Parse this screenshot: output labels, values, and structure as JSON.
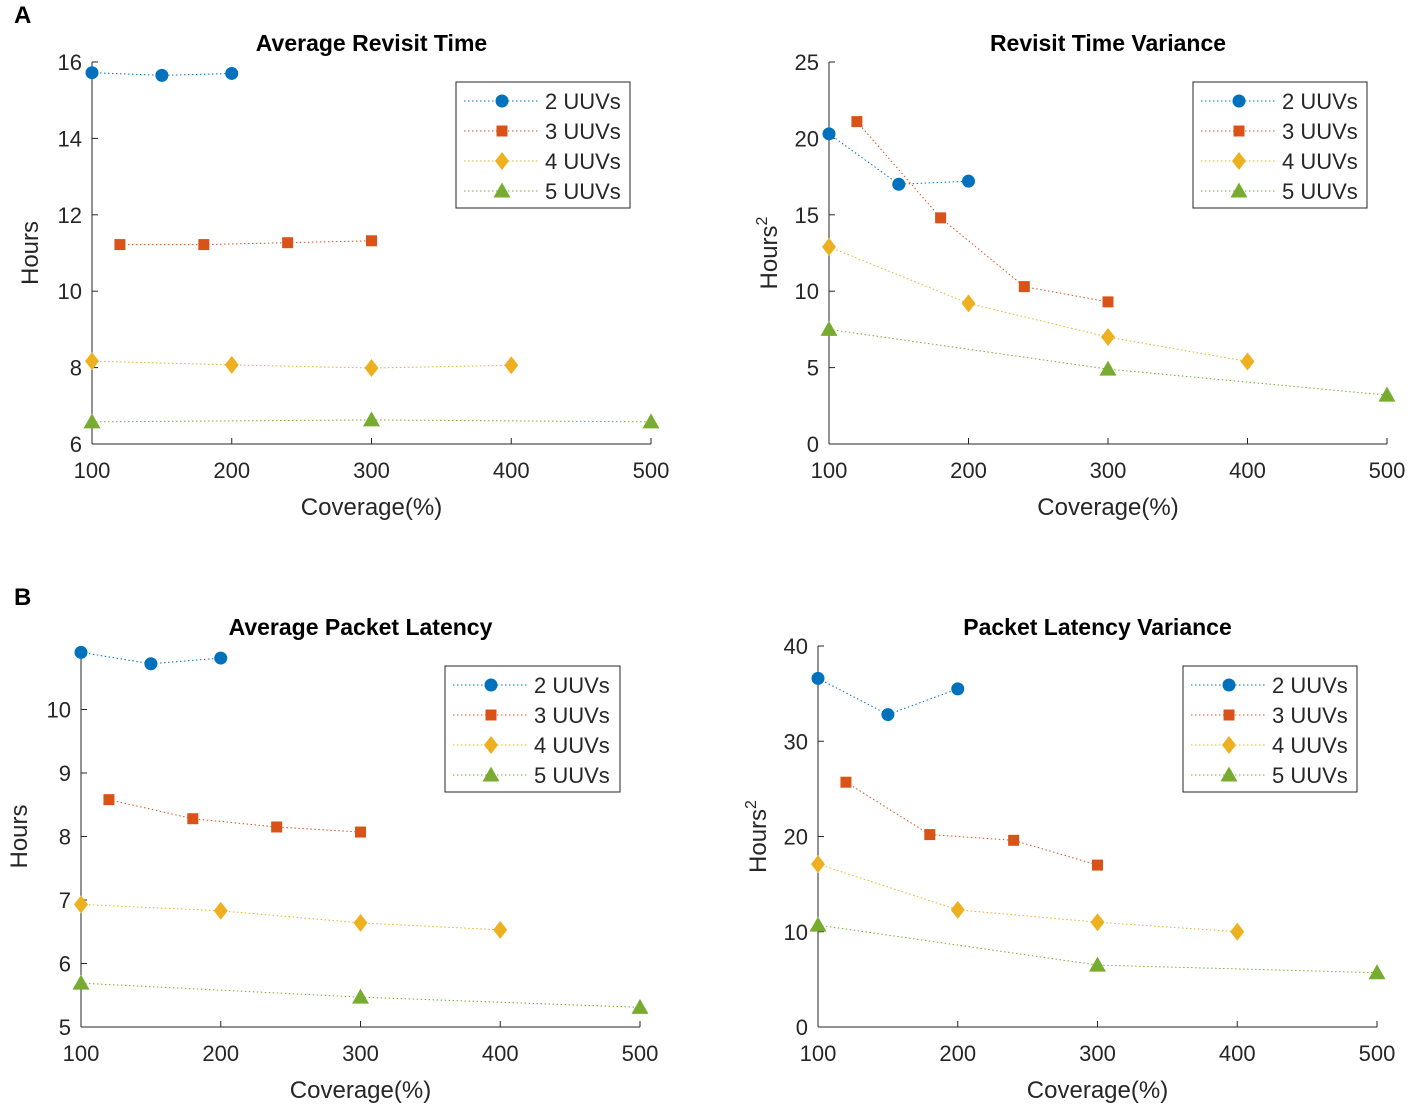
{
  "panel_labels": {
    "a": "A",
    "b": "B"
  },
  "colors": {
    "2": "#0072BD",
    "3": "#D95319",
    "4": "#EDB120",
    "5": "#77AC30",
    "axis": "#262626"
  },
  "chart_data": [
    {
      "type": "line",
      "title": "Average Revisit Time",
      "xlabel": "Coverage(%)",
      "ylabel": "Hours",
      "ylabel_sup": "",
      "xlim": [
        100,
        500
      ],
      "ylim": [
        6,
        16
      ],
      "xticks": [
        100,
        200,
        300,
        400,
        500
      ],
      "yticks": [
        6,
        8,
        10,
        12,
        14,
        16
      ],
      "legend": "top-right",
      "series": [
        {
          "name": "2 UUVs",
          "marker": "circle",
          "x": [
            100,
            150,
            200
          ],
          "y": [
            15.72,
            15.65,
            15.7
          ]
        },
        {
          "name": "3 UUVs",
          "marker": "square",
          "x": [
            120,
            180,
            240,
            300
          ],
          "y": [
            11.22,
            11.22,
            11.27,
            11.32
          ]
        },
        {
          "name": "4 UUVs",
          "marker": "diamond",
          "x": [
            100,
            200,
            300,
            400
          ],
          "y": [
            8.17,
            8.07,
            7.99,
            8.06
          ]
        },
        {
          "name": "5 UUVs",
          "marker": "triangle",
          "x": [
            100,
            300,
            500
          ],
          "y": [
            6.58,
            6.63,
            6.58
          ]
        }
      ]
    },
    {
      "type": "line",
      "title": "Revisit Time Variance",
      "xlabel": "Coverage(%)",
      "ylabel": "Hours",
      "ylabel_sup": "2",
      "xlim": [
        100,
        500
      ],
      "ylim": [
        0,
        25
      ],
      "xticks": [
        100,
        200,
        300,
        400,
        500
      ],
      "yticks": [
        0,
        5,
        10,
        15,
        20,
        25
      ],
      "legend": "top-right",
      "series": [
        {
          "name": "2 UUVs",
          "marker": "circle",
          "x": [
            100,
            150,
            200
          ],
          "y": [
            20.3,
            17.0,
            17.2
          ]
        },
        {
          "name": "3 UUVs",
          "marker": "square",
          "x": [
            120,
            180,
            240,
            300
          ],
          "y": [
            21.1,
            14.8,
            10.3,
            9.3
          ]
        },
        {
          "name": "4 UUVs",
          "marker": "diamond",
          "x": [
            100,
            200,
            300,
            400
          ],
          "y": [
            12.9,
            9.2,
            7.0,
            5.4
          ]
        },
        {
          "name": "5 UUVs",
          "marker": "triangle",
          "x": [
            100,
            300,
            500
          ],
          "y": [
            7.5,
            4.9,
            3.2
          ]
        }
      ]
    },
    {
      "type": "line",
      "title": "Average Packet Latency",
      "xlabel": "Coverage(%)",
      "ylabel": "Hours",
      "ylabel_sup": "",
      "xlim": [
        100,
        500
      ],
      "ylim": [
        5,
        11
      ],
      "xticks": [
        100,
        200,
        300,
        400,
        500
      ],
      "yticks": [
        5,
        6,
        7,
        8,
        9,
        10
      ],
      "legend": "top-right",
      "series": [
        {
          "name": "2 UUVs",
          "marker": "circle",
          "x": [
            100,
            150,
            200
          ],
          "y": [
            10.9,
            10.72,
            10.81
          ]
        },
        {
          "name": "3 UUVs",
          "marker": "square",
          "x": [
            120,
            180,
            240,
            300
          ],
          "y": [
            8.58,
            8.28,
            8.15,
            8.07
          ]
        },
        {
          "name": "4 UUVs",
          "marker": "diamond",
          "x": [
            100,
            200,
            300,
            400
          ],
          "y": [
            6.93,
            6.83,
            6.64,
            6.53
          ]
        },
        {
          "name": "5 UUVs",
          "marker": "triangle",
          "x": [
            100,
            300,
            500
          ],
          "y": [
            5.69,
            5.47,
            5.31
          ]
        }
      ]
    },
    {
      "type": "line",
      "title": "Packet Latency Variance",
      "xlabel": "Coverage(%)",
      "ylabel": "Hours",
      "ylabel_sup": "2",
      "xlim": [
        100,
        500
      ],
      "ylim": [
        0,
        40
      ],
      "xticks": [
        100,
        200,
        300,
        400,
        500
      ],
      "yticks": [
        0,
        10,
        20,
        30,
        40
      ],
      "legend": "top-right",
      "series": [
        {
          "name": "2 UUVs",
          "marker": "circle",
          "x": [
            100,
            150,
            200
          ],
          "y": [
            36.6,
            32.8,
            35.5
          ]
        },
        {
          "name": "3 UUVs",
          "marker": "square",
          "x": [
            120,
            180,
            240,
            300
          ],
          "y": [
            25.7,
            20.2,
            19.6,
            17.0
          ]
        },
        {
          "name": "4 UUVs",
          "marker": "diamond",
          "x": [
            100,
            200,
            300,
            400
          ],
          "y": [
            17.1,
            12.3,
            11.0,
            10.0
          ]
        },
        {
          "name": "5 UUVs",
          "marker": "triangle",
          "x": [
            100,
            300,
            500
          ],
          "y": [
            10.7,
            6.5,
            5.7
          ]
        }
      ]
    }
  ]
}
